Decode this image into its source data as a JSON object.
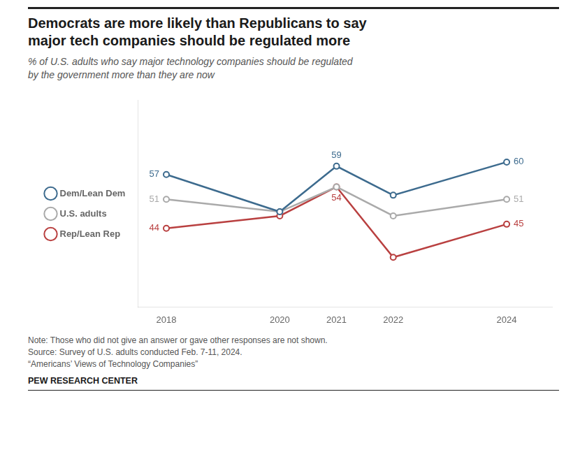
{
  "chart_data": {
    "type": "line",
    "title": [
      "Democrats are more likely than Republicans to say",
      "major tech companies should be regulated more"
    ],
    "subtitle": [
      "% of U.S. adults who say major technology companies should be regulated",
      "by the government more than they are now"
    ],
    "x": [
      2018,
      2020,
      2021,
      2022,
      2024
    ],
    "series": [
      {
        "name": "Dem/Lean Dem",
        "color": "#3d6b8e",
        "values": [
          57,
          48,
          59,
          52,
          60
        ]
      },
      {
        "name": "U.S. adults",
        "color": "#aaaaaa",
        "values": [
          51,
          48,
          54,
          47,
          51
        ]
      },
      {
        "name": "Rep/Lean Rep",
        "color": "#b94040",
        "values": [
          44,
          47,
          54,
          37,
          45
        ]
      }
    ],
    "xlim": [
      2017.5,
      2024.8
    ],
    "xticks": [
      2018,
      2020,
      2021,
      2022,
      2024
    ],
    "ylim": [
      25,
      75
    ],
    "tick_labels": "x",
    "grid": false,
    "legend": "left",
    "marker": "circle",
    "annotations": [
      {
        "series": "Dem/Lean Dem",
        "x": 2018,
        "text": "57"
      },
      {
        "series": "U.S. adults",
        "x": 2018,
        "text": "51"
      },
      {
        "series": "Rep/Lean Rep",
        "x": 2018,
        "text": "44"
      },
      {
        "series": "Dem/Lean Dem",
        "x": 2021,
        "text": "59"
      },
      {
        "series": "Rep/Lean Rep",
        "x": 2021,
        "text": "54"
      },
      {
        "series": "Dem/Lean Dem",
        "x": 2024,
        "text": "60"
      },
      {
        "series": "U.S. adults",
        "x": 2024,
        "text": "51"
      },
      {
        "series": "Rep/Lean Rep",
        "x": 2024,
        "text": "45"
      }
    ],
    "notes": [
      "Note: Those who did not give an answer or gave other responses are not shown.",
      "Source: Survey of U.S. adults conducted Feb. 7-11, 2024.",
      "“Americans’ Views of Technology Companies”"
    ],
    "source": "PEW RESEARCH CENTER"
  }
}
